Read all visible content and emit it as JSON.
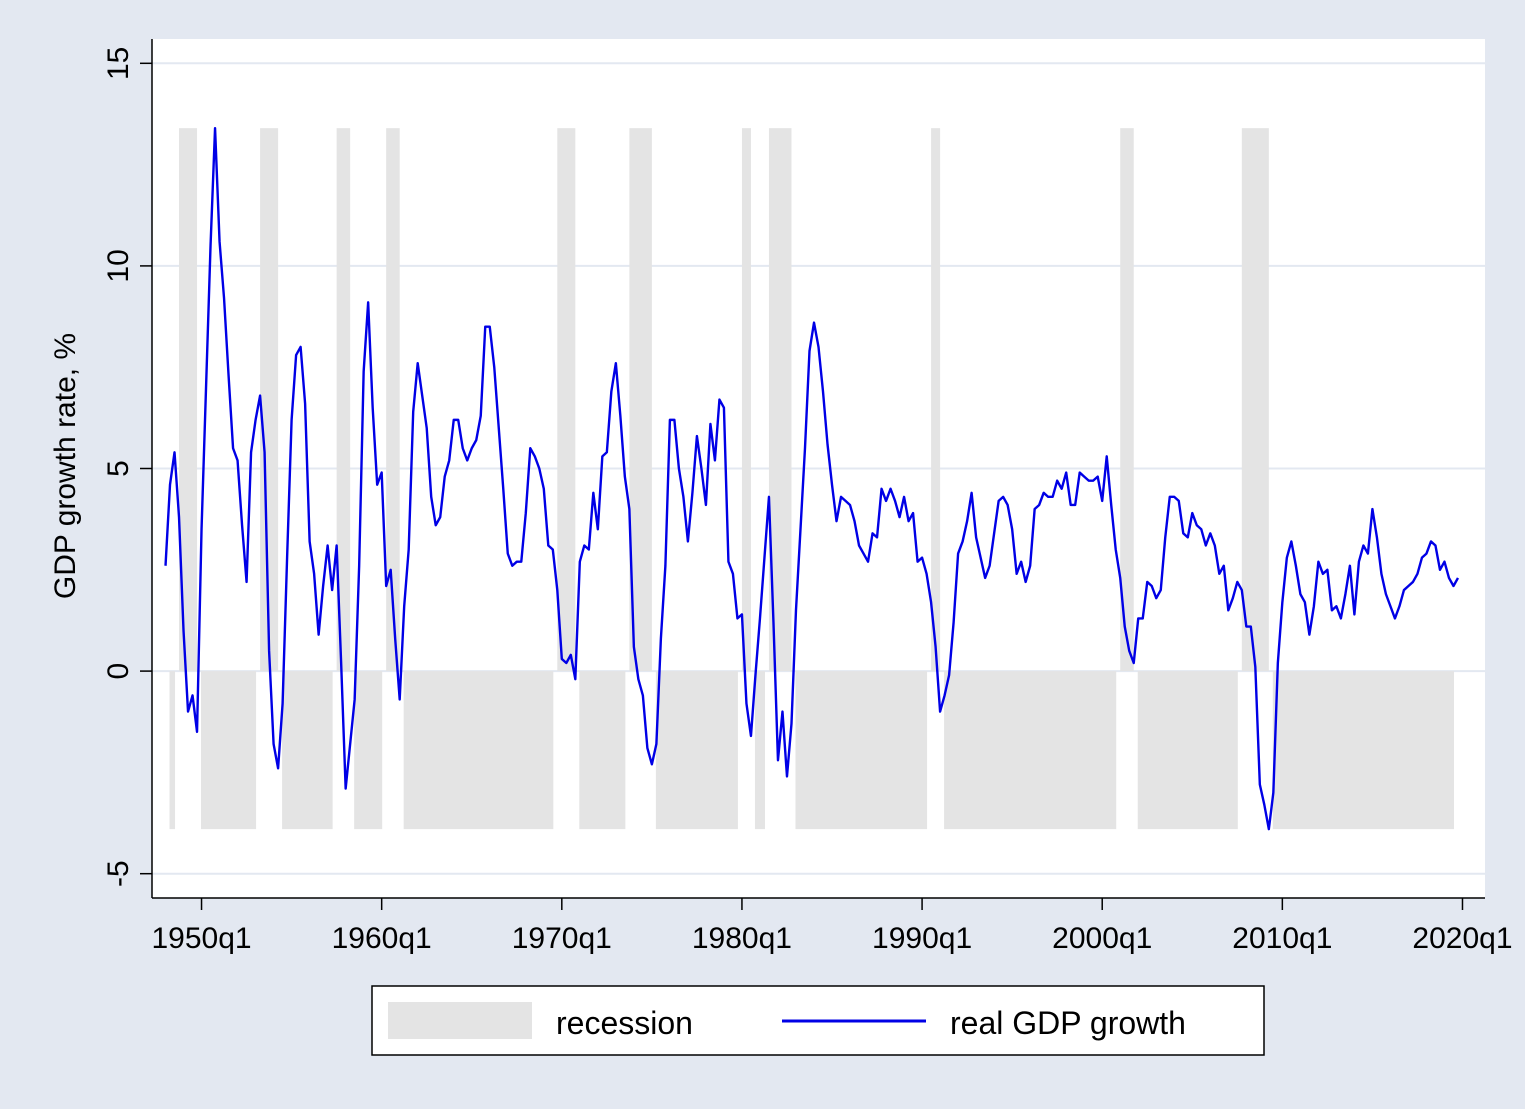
{
  "chart_data": {
    "type": "line",
    "ylabel": "GDP growth rate, %",
    "xlabel": "",
    "ylim": [
      -5.6,
      15.6
    ],
    "xlim": [
      1947.25,
      2021.25
    ],
    "yticks": [
      -5,
      0,
      5,
      10,
      15
    ],
    "xticks": [
      1950,
      1960,
      1970,
      1980,
      1990,
      2000,
      2010,
      2020
    ],
    "xtick_labels": [
      "1950q1",
      "1960q1",
      "1970q1",
      "1980q1",
      "1990q1",
      "2000q1",
      "2010q1",
      "2020q1"
    ],
    "ytick_labels": [
      "-5",
      "0",
      "5",
      "10",
      "15"
    ],
    "grid": true,
    "legend_position": "bottom",
    "legend": [
      {
        "label": "recession",
        "kind": "area",
        "color": "#e4e4e4"
      },
      {
        "label": "real GDP growth",
        "kind": "line",
        "color": "#0000e6"
      }
    ],
    "recession_bands": {
      "upper": 13.4,
      "lower": -3.9,
      "periods": [
        [
          1948.75,
          1949.75
        ],
        [
          1953.25,
          1954.25
        ],
        [
          1957.5,
          1958.25
        ],
        [
          1960.25,
          1961.0
        ],
        [
          1969.75,
          1970.75
        ],
        [
          1973.75,
          1975.0
        ],
        [
          1980.0,
          1980.5
        ],
        [
          1981.5,
          1982.75
        ],
        [
          1990.5,
          1991.0
        ],
        [
          2001.0,
          2001.75
        ],
        [
          2007.75,
          2009.25
        ]
      ]
    },
    "series": [
      {
        "name": "real GDP growth",
        "color": "#0000e6",
        "points": [
          [
            1948.0,
            2.6
          ],
          [
            1948.25,
            4.6
          ],
          [
            1948.5,
            5.4
          ],
          [
            1948.75,
            3.8
          ],
          [
            1949.0,
            1.0
          ],
          [
            1949.25,
            -1.0
          ],
          [
            1949.5,
            -0.6
          ],
          [
            1949.75,
            -1.5
          ],
          [
            1950.0,
            3.5
          ],
          [
            1950.25,
            7.0
          ],
          [
            1950.5,
            10.5
          ],
          [
            1950.75,
            13.4
          ],
          [
            1951.0,
            10.6
          ],
          [
            1951.25,
            9.2
          ],
          [
            1951.5,
            7.3
          ],
          [
            1951.75,
            5.5
          ],
          [
            1952.0,
            5.2
          ],
          [
            1952.25,
            3.6
          ],
          [
            1952.5,
            2.2
          ],
          [
            1952.75,
            5.4
          ],
          [
            1953.0,
            6.2
          ],
          [
            1953.25,
            6.8
          ],
          [
            1953.5,
            5.4
          ],
          [
            1953.75,
            0.5
          ],
          [
            1954.0,
            -1.8
          ],
          [
            1954.25,
            -2.4
          ],
          [
            1954.5,
            -0.8
          ],
          [
            1954.75,
            2.8
          ],
          [
            1955.0,
            6.2
          ],
          [
            1955.25,
            7.8
          ],
          [
            1955.5,
            8.0
          ],
          [
            1955.75,
            6.6
          ],
          [
            1956.0,
            3.2
          ],
          [
            1956.25,
            2.4
          ],
          [
            1956.5,
            0.9
          ],
          [
            1956.75,
            2.1
          ],
          [
            1957.0,
            3.1
          ],
          [
            1957.25,
            2.0
          ],
          [
            1957.5,
            3.1
          ],
          [
            1957.75,
            0.2
          ],
          [
            1958.0,
            -2.9
          ],
          [
            1958.25,
            -1.8
          ],
          [
            1958.5,
            -0.7
          ],
          [
            1958.75,
            2.6
          ],
          [
            1959.0,
            7.4
          ],
          [
            1959.25,
            9.1
          ],
          [
            1959.5,
            6.5
          ],
          [
            1959.75,
            4.6
          ],
          [
            1960.0,
            4.9
          ],
          [
            1960.25,
            2.1
          ],
          [
            1960.5,
            2.5
          ],
          [
            1960.75,
            0.8
          ],
          [
            1961.0,
            -0.7
          ],
          [
            1961.25,
            1.6
          ],
          [
            1961.5,
            3.0
          ],
          [
            1961.75,
            6.4
          ],
          [
            1962.0,
            7.6
          ],
          [
            1962.25,
            6.8
          ],
          [
            1962.5,
            6.0
          ],
          [
            1962.75,
            4.3
          ],
          [
            1963.0,
            3.6
          ],
          [
            1963.25,
            3.8
          ],
          [
            1963.5,
            4.8
          ],
          [
            1963.75,
            5.2
          ],
          [
            1964.0,
            6.2
          ],
          [
            1964.25,
            6.2
          ],
          [
            1964.5,
            5.5
          ],
          [
            1964.75,
            5.2
          ],
          [
            1965.0,
            5.5
          ],
          [
            1965.25,
            5.7
          ],
          [
            1965.5,
            6.3
          ],
          [
            1965.75,
            8.5
          ],
          [
            1966.0,
            8.5
          ],
          [
            1966.25,
            7.5
          ],
          [
            1966.5,
            6.0
          ],
          [
            1966.75,
            4.5
          ],
          [
            1967.0,
            2.9
          ],
          [
            1967.25,
            2.6
          ],
          [
            1967.5,
            2.7
          ],
          [
            1967.75,
            2.7
          ],
          [
            1968.0,
            3.9
          ],
          [
            1968.25,
            5.5
          ],
          [
            1968.5,
            5.3
          ],
          [
            1968.75,
            5.0
          ],
          [
            1969.0,
            4.5
          ],
          [
            1969.25,
            3.1
          ],
          [
            1969.5,
            3.0
          ],
          [
            1969.75,
            2.0
          ],
          [
            1970.0,
            0.3
          ],
          [
            1970.25,
            0.2
          ],
          [
            1970.5,
            0.4
          ],
          [
            1970.75,
            -0.2
          ],
          [
            1971.0,
            2.7
          ],
          [
            1971.25,
            3.1
          ],
          [
            1971.5,
            3.0
          ],
          [
            1971.75,
            4.4
          ],
          [
            1972.0,
            3.5
          ],
          [
            1972.25,
            5.3
          ],
          [
            1972.5,
            5.4
          ],
          [
            1972.75,
            6.9
          ],
          [
            1973.0,
            7.6
          ],
          [
            1973.25,
            6.3
          ],
          [
            1973.5,
            4.8
          ],
          [
            1973.75,
            4.0
          ],
          [
            1974.0,
            0.6
          ],
          [
            1974.25,
            -0.2
          ],
          [
            1974.5,
            -0.6
          ],
          [
            1974.75,
            -1.9
          ],
          [
            1975.0,
            -2.3
          ],
          [
            1975.25,
            -1.8
          ],
          [
            1975.5,
            0.8
          ],
          [
            1975.75,
            2.6
          ],
          [
            1976.0,
            6.2
          ],
          [
            1976.25,
            6.2
          ],
          [
            1976.5,
            5.0
          ],
          [
            1976.75,
            4.3
          ],
          [
            1977.0,
            3.2
          ],
          [
            1977.25,
            4.4
          ],
          [
            1977.5,
            5.8
          ],
          [
            1977.75,
            5.0
          ],
          [
            1978.0,
            4.1
          ],
          [
            1978.25,
            6.1
          ],
          [
            1978.5,
            5.2
          ],
          [
            1978.75,
            6.7
          ],
          [
            1979.0,
            6.5
          ],
          [
            1979.25,
            2.7
          ],
          [
            1979.5,
            2.4
          ],
          [
            1979.75,
            1.3
          ],
          [
            1980.0,
            1.4
          ],
          [
            1980.25,
            -0.8
          ],
          [
            1980.5,
            -1.6
          ],
          [
            1980.75,
            -0.1
          ],
          [
            1981.0,
            1.3
          ],
          [
            1981.25,
            2.8
          ],
          [
            1981.5,
            4.3
          ],
          [
            1981.75,
            1.2
          ],
          [
            1982.0,
            -2.2
          ],
          [
            1982.25,
            -1.0
          ],
          [
            1982.5,
            -2.6
          ],
          [
            1982.75,
            -1.3
          ],
          [
            1983.0,
            1.5
          ],
          [
            1983.25,
            3.5
          ],
          [
            1983.5,
            5.5
          ],
          [
            1983.75,
            7.9
          ],
          [
            1984.0,
            8.6
          ],
          [
            1984.25,
            8.0
          ],
          [
            1984.5,
            6.9
          ],
          [
            1984.75,
            5.6
          ],
          [
            1985.0,
            4.6
          ],
          [
            1985.25,
            3.7
          ],
          [
            1985.5,
            4.3
          ],
          [
            1985.75,
            4.2
          ],
          [
            1986.0,
            4.1
          ],
          [
            1986.25,
            3.7
          ],
          [
            1986.5,
            3.1
          ],
          [
            1986.75,
            2.9
          ],
          [
            1987.0,
            2.7
          ],
          [
            1987.25,
            3.4
          ],
          [
            1987.5,
            3.3
          ],
          [
            1987.75,
            4.5
          ],
          [
            1988.0,
            4.2
          ],
          [
            1988.25,
            4.5
          ],
          [
            1988.5,
            4.2
          ],
          [
            1988.75,
            3.8
          ],
          [
            1989.0,
            4.3
          ],
          [
            1989.25,
            3.7
          ],
          [
            1989.5,
            3.9
          ],
          [
            1989.75,
            2.7
          ],
          [
            1990.0,
            2.8
          ],
          [
            1990.25,
            2.4
          ],
          [
            1990.5,
            1.7
          ],
          [
            1990.75,
            0.6
          ],
          [
            1991.0,
            -1.0
          ],
          [
            1991.25,
            -0.6
          ],
          [
            1991.5,
            -0.1
          ],
          [
            1991.75,
            1.2
          ],
          [
            1992.0,
            2.9
          ],
          [
            1992.25,
            3.2
          ],
          [
            1992.5,
            3.7
          ],
          [
            1992.75,
            4.4
          ],
          [
            1993.0,
            3.3
          ],
          [
            1993.25,
            2.8
          ],
          [
            1993.5,
            2.3
          ],
          [
            1993.75,
            2.6
          ],
          [
            1994.0,
            3.4
          ],
          [
            1994.25,
            4.2
          ],
          [
            1994.5,
            4.3
          ],
          [
            1994.75,
            4.1
          ],
          [
            1995.0,
            3.5
          ],
          [
            1995.25,
            2.4
          ],
          [
            1995.5,
            2.7
          ],
          [
            1995.75,
            2.2
          ],
          [
            1996.0,
            2.6
          ],
          [
            1996.25,
            4.0
          ],
          [
            1996.5,
            4.1
          ],
          [
            1996.75,
            4.4
          ],
          [
            1997.0,
            4.3
          ],
          [
            1997.25,
            4.3
          ],
          [
            1997.5,
            4.7
          ],
          [
            1997.75,
            4.5
          ],
          [
            1998.0,
            4.9
          ],
          [
            1998.25,
            4.1
          ],
          [
            1998.5,
            4.1
          ],
          [
            1998.75,
            4.9
          ],
          [
            1999.0,
            4.8
          ],
          [
            1999.25,
            4.7
          ],
          [
            1999.5,
            4.7
          ],
          [
            1999.75,
            4.8
          ],
          [
            2000.0,
            4.2
          ],
          [
            2000.25,
            5.3
          ],
          [
            2000.5,
            4.1
          ],
          [
            2000.75,
            3.0
          ],
          [
            2001.0,
            2.3
          ],
          [
            2001.25,
            1.1
          ],
          [
            2001.5,
            0.5
          ],
          [
            2001.75,
            0.2
          ],
          [
            2002.0,
            1.3
          ],
          [
            2002.25,
            1.3
          ],
          [
            2002.5,
            2.2
          ],
          [
            2002.75,
            2.1
          ],
          [
            2003.0,
            1.8
          ],
          [
            2003.25,
            2.0
          ],
          [
            2003.5,
            3.3
          ],
          [
            2003.75,
            4.3
          ],
          [
            2004.0,
            4.3
          ],
          [
            2004.25,
            4.2
          ],
          [
            2004.5,
            3.4
          ],
          [
            2004.75,
            3.3
          ],
          [
            2005.0,
            3.9
          ],
          [
            2005.25,
            3.6
          ],
          [
            2005.5,
            3.5
          ],
          [
            2005.75,
            3.1
          ],
          [
            2006.0,
            3.4
          ],
          [
            2006.25,
            3.1
          ],
          [
            2006.5,
            2.4
          ],
          [
            2006.75,
            2.6
          ],
          [
            2007.0,
            1.5
          ],
          [
            2007.25,
            1.8
          ],
          [
            2007.5,
            2.2
          ],
          [
            2007.75,
            2.0
          ],
          [
            2008.0,
            1.1
          ],
          [
            2008.25,
            1.1
          ],
          [
            2008.5,
            0.1
          ],
          [
            2008.75,
            -2.8
          ],
          [
            2009.0,
            -3.3
          ],
          [
            2009.25,
            -3.9
          ],
          [
            2009.5,
            -3.0
          ],
          [
            2009.75,
            0.2
          ],
          [
            2010.0,
            1.7
          ],
          [
            2010.25,
            2.8
          ],
          [
            2010.5,
            3.2
          ],
          [
            2010.75,
            2.6
          ],
          [
            2011.0,
            1.9
          ],
          [
            2011.25,
            1.7
          ],
          [
            2011.5,
            0.9
          ],
          [
            2011.75,
            1.6
          ],
          [
            2012.0,
            2.7
          ],
          [
            2012.25,
            2.4
          ],
          [
            2012.5,
            2.5
          ],
          [
            2012.75,
            1.5
          ],
          [
            2013.0,
            1.6
          ],
          [
            2013.25,
            1.3
          ],
          [
            2013.5,
            1.9
          ],
          [
            2013.75,
            2.6
          ],
          [
            2014.0,
            1.4
          ],
          [
            2014.25,
            2.7
          ],
          [
            2014.5,
            3.1
          ],
          [
            2014.75,
            2.9
          ],
          [
            2015.0,
            4.0
          ],
          [
            2015.25,
            3.3
          ],
          [
            2015.5,
            2.4
          ],
          [
            2015.75,
            1.9
          ],
          [
            2016.0,
            1.6
          ],
          [
            2016.25,
            1.3
          ],
          [
            2016.5,
            1.6
          ],
          [
            2016.75,
            2.0
          ],
          [
            2017.0,
            2.1
          ],
          [
            2017.25,
            2.2
          ],
          [
            2017.5,
            2.4
          ],
          [
            2017.75,
            2.8
          ],
          [
            2018.0,
            2.9
          ],
          [
            2018.25,
            3.2
          ],
          [
            2018.5,
            3.1
          ],
          [
            2018.75,
            2.5
          ],
          [
            2019.0,
            2.7
          ],
          [
            2019.25,
            2.3
          ],
          [
            2019.5,
            2.1
          ],
          [
            2019.75,
            2.3
          ]
        ]
      }
    ]
  }
}
